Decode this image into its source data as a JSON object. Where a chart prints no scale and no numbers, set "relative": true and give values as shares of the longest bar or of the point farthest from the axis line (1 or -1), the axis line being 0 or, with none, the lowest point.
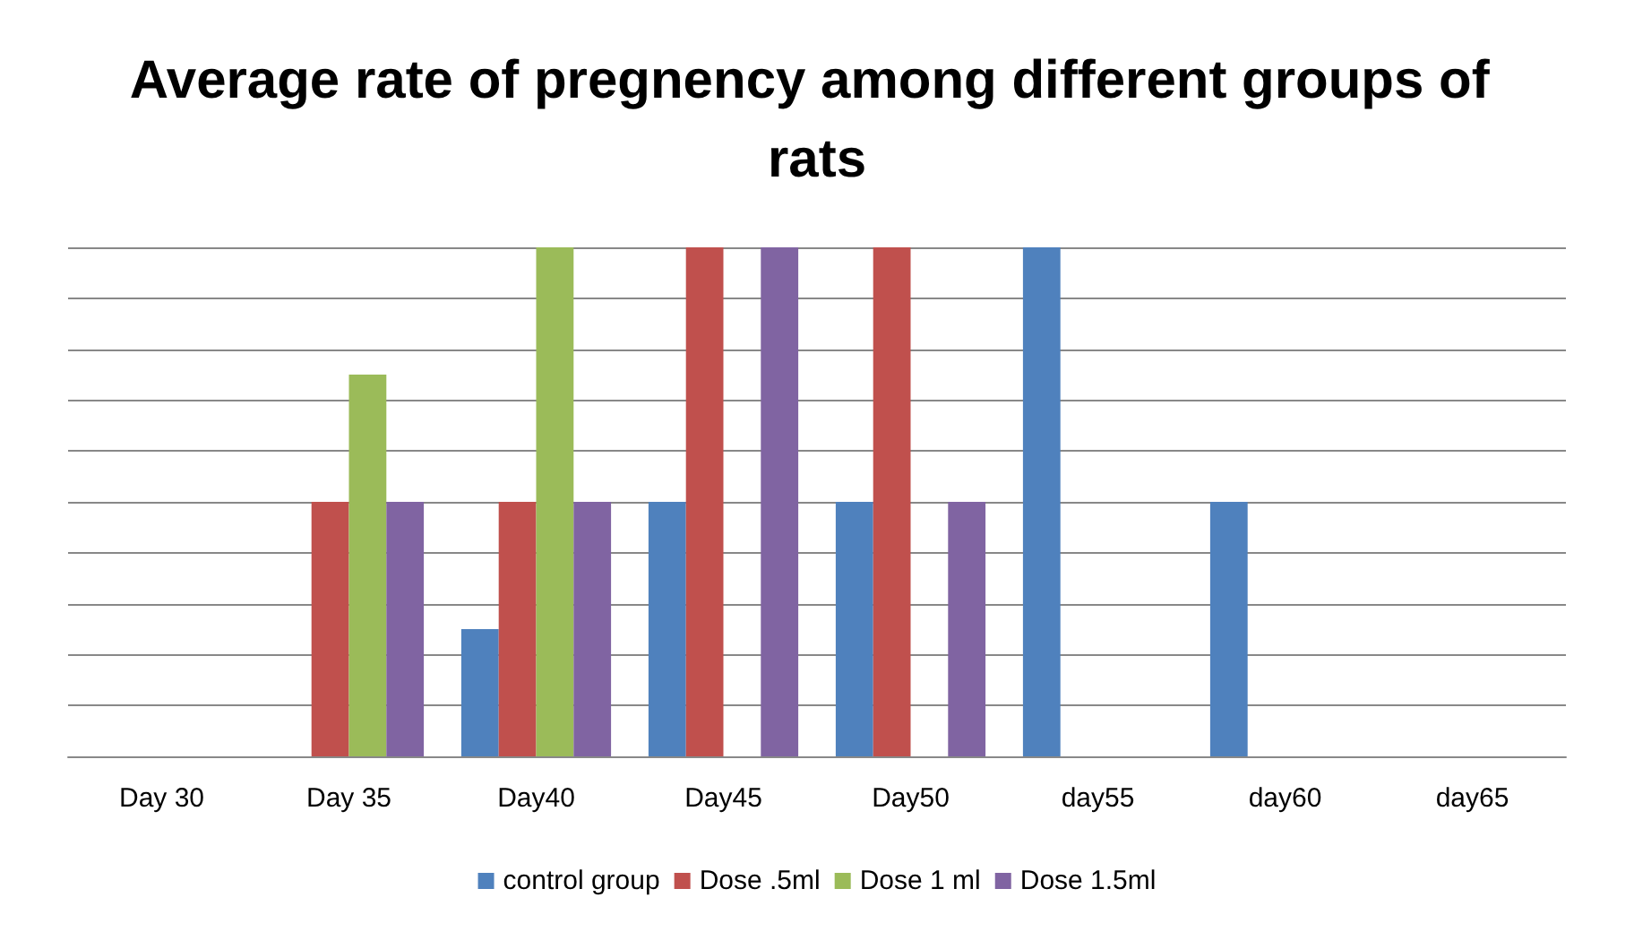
{
  "chart_data": {
    "type": "bar",
    "title": "Average rate of pregnency among different groups of rats",
    "relative": true,
    "grid": "y",
    "legend": "bottom",
    "categories": [
      "Day 30",
      "Day 35",
      "Day40",
      "Day45",
      "Day50",
      "day55",
      "day60",
      "day65"
    ],
    "series": [
      {
        "name": "control group",
        "color": "#4f81bd",
        "values": [
          0,
          0,
          0.25,
          0.5,
          0.5,
          1,
          0.5,
          0
        ]
      },
      {
        "name": "Dose .5ml",
        "color": "#c0504d",
        "values": [
          0,
          0.5,
          0.5,
          1,
          1,
          0,
          0,
          0
        ]
      },
      {
        "name": "Dose 1 ml",
        "color": "#9bbb59",
        "values": [
          0,
          0.75,
          1,
          0,
          0,
          0,
          0,
          0
        ]
      },
      {
        "name": "Dose 1.5ml",
        "color": "#8064a2",
        "values": [
          0,
          0.5,
          0.5,
          1,
          0.5,
          0,
          0,
          0
        ]
      }
    ]
  }
}
